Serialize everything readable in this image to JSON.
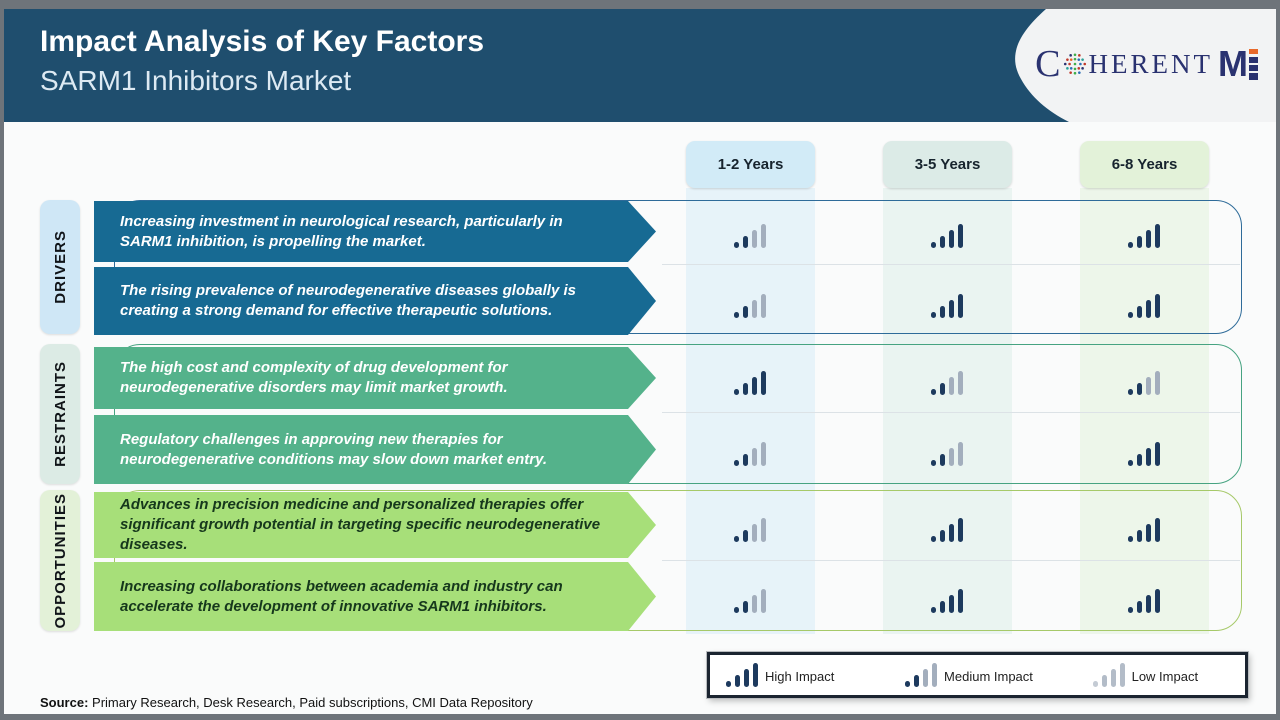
{
  "header": {
    "title": "Impact Analysis of Key Factors",
    "subtitle": "SARM1 Inhibitors Market",
    "brand": {
      "c": "C",
      "rest": "HERENT",
      "m": "M",
      "navy": "#2a3270",
      "accent_orange": "#e8692a",
      "globe_green": "#3fae49"
    }
  },
  "columns": [
    {
      "label": "1-2 Years",
      "bg": "#d2ebf7"
    },
    {
      "label": "3-5 Years",
      "bg": "#dcebe7"
    },
    {
      "label": "6-8 Years",
      "bg": "#e3f2d9"
    }
  ],
  "sections": [
    {
      "label": "DRIVERS",
      "arrow_color": "#176a93",
      "items": [
        {
          "text": "Increasing investment in neurological research, particularly in SARM1 inhibition, is propelling the market.",
          "impacts": [
            "medium",
            "high",
            "high"
          ]
        },
        {
          "text": "The rising prevalence of neurodegenerative diseases globally is creating a strong demand for effective therapeutic solutions.",
          "impacts": [
            "medium",
            "high",
            "high"
          ]
        }
      ]
    },
    {
      "label": "RESTRAINTS",
      "arrow_color": "#54b28b",
      "items": [
        {
          "text": "The high cost and complexity of drug development for neurodegenerative disorders may limit market growth.",
          "impacts": [
            "high",
            "medium",
            "medium"
          ]
        },
        {
          "text": "Regulatory challenges in approving new therapies for neurodegenerative conditions may slow down market entry.",
          "impacts": [
            "medium",
            "medium",
            "high"
          ]
        }
      ]
    },
    {
      "label": "OPPORTUNITIES",
      "arrow_color": "#a7df79",
      "items": [
        {
          "text": "Advances in precision medicine and personalized therapies offer significant growth potential in targeting specific neurodegenerative diseases.",
          "impacts": [
            "medium",
            "high",
            "high"
          ]
        },
        {
          "text": "Increasing collaborations between academia and industry can accelerate the development of innovative SARM1 inhibitors.",
          "impacts": [
            "medium",
            "high",
            "high"
          ]
        }
      ]
    }
  ],
  "legend": {
    "items": [
      {
        "label": "High Impact",
        "level": "high"
      },
      {
        "label": "Medium Impact",
        "level": "medium"
      },
      {
        "label": "Low Impact",
        "level": "low"
      }
    ]
  },
  "source": {
    "label": "Source:",
    "text": " Primary Research, Desk Research, Paid subscriptions, CMI Data Repository"
  },
  "colors": {
    "header_bg": "#1f4e6e",
    "impact_dark": "#1d3a5e",
    "impact_gray": "#a3aebd"
  }
}
